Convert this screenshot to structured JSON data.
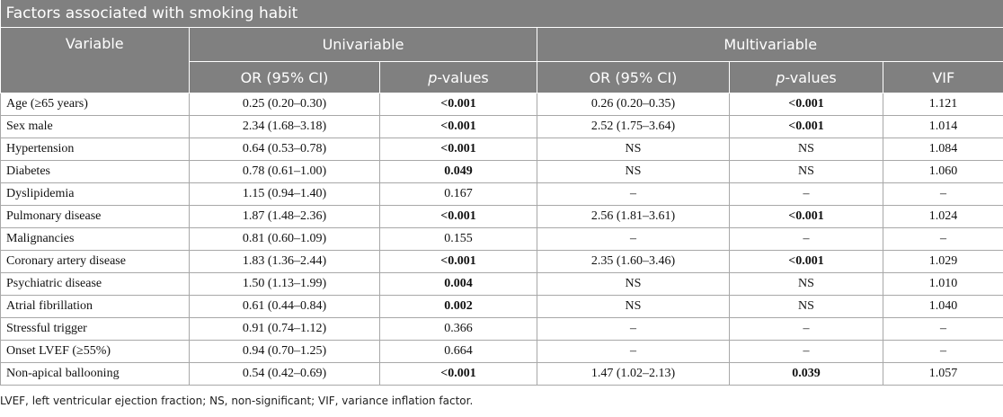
{
  "title": "Factors associated with smoking habit",
  "headers": {
    "variable": "Variable",
    "univariable": "Univariable",
    "multivariable": "Multivariable",
    "or_ci": "OR (95% CI)",
    "p_italic": "p",
    "p_rest": "-values",
    "vif": "VIF"
  },
  "rows": [
    {
      "variable": "Age (≥65 years)",
      "uni_or": "0.25 (0.20–0.30)",
      "uni_p": "<0.001",
      "multi_or": "0.26 (0.20–0.35)",
      "multi_p": "<0.001",
      "vif": "1.121"
    },
    {
      "variable": "Sex male",
      "uni_or": "2.34 (1.68–3.18)",
      "uni_p": "<0.001",
      "multi_or": "2.52 (1.75–3.64)",
      "multi_p": "<0.001",
      "vif": "1.014"
    },
    {
      "variable": "Hypertension",
      "uni_or": "0.64 (0.53–0.78)",
      "uni_p": "<0.001",
      "multi_or": "NS",
      "multi_p": "NS",
      "vif": "1.084"
    },
    {
      "variable": "Diabetes",
      "uni_or": "0.78 (0.61–1.00)",
      "uni_p": "0.049",
      "multi_or": "NS",
      "multi_p": "NS",
      "vif": "1.060"
    },
    {
      "variable": "Dyslipidemia",
      "uni_or": "1.15 (0.94–1.40)",
      "uni_p": "0.167",
      "multi_or": "–",
      "multi_p": "–",
      "vif": "–"
    },
    {
      "variable": "Pulmonary disease",
      "uni_or": "1.87 (1.48–2.36)",
      "uni_p": "<0.001",
      "multi_or": "2.56 (1.81–3.61)",
      "multi_p": "<0.001",
      "vif": "1.024"
    },
    {
      "variable": "Malignancies",
      "uni_or": "0.81 (0.60–1.09)",
      "uni_p": "0.155",
      "multi_or": "–",
      "multi_p": "–",
      "vif": "–"
    },
    {
      "variable": "Coronary artery disease",
      "uni_or": "1.83 (1.36–2.44)",
      "uni_p": "<0.001",
      "multi_or": "2.35 (1.60–3.46)",
      "multi_p": "<0.001",
      "vif": "1.029"
    },
    {
      "variable": "Psychiatric disease",
      "uni_or": "1.50 (1.13–1.99)",
      "uni_p": "0.004",
      "multi_or": "NS",
      "multi_p": "NS",
      "vif": "1.010"
    },
    {
      "variable": "Atrial fibrillation",
      "uni_or": "0.61 (0.44–0.84)",
      "uni_p": "0.002",
      "multi_or": "NS",
      "multi_p": "NS",
      "vif": "1.040"
    },
    {
      "variable": "Stressful trigger",
      "uni_or": "0.91 (0.74–1.12)",
      "uni_p": "0.366",
      "multi_or": "–",
      "multi_p": "–",
      "vif": "–"
    },
    {
      "variable": "Onset LVEF (≥55%)",
      "uni_or": "0.94 (0.70–1.25)",
      "uni_p": "0.664",
      "multi_or": "–",
      "multi_p": "–",
      "vif": "–"
    },
    {
      "variable": "Non-apical ballooning",
      "uni_or": "0.54 (0.42–0.69)",
      "uni_p": "<0.001",
      "multi_or": "1.47 (1.02–2.13)",
      "multi_p": "0.039",
      "vif": "1.057"
    }
  ],
  "bold_uni_p": [
    true,
    true,
    true,
    true,
    false,
    true,
    false,
    true,
    true,
    true,
    false,
    false,
    true
  ],
  "bold_multi_p": [
    true,
    true,
    false,
    false,
    false,
    true,
    false,
    true,
    false,
    false,
    false,
    false,
    true
  ],
  "footnote": "LVEF, left ventricular ejection fraction; NS, non-significant; VIF, variance inflation factor."
}
